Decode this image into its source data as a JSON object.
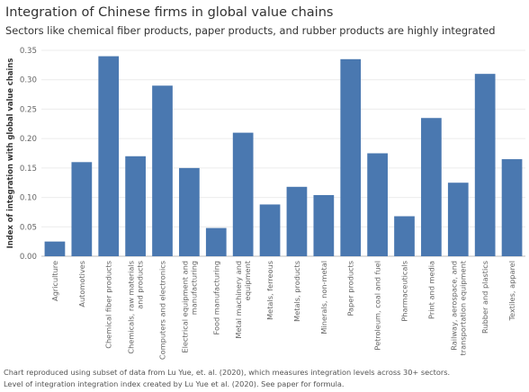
{
  "chart_data": {
    "type": "bar",
    "title": "Integration of Chinese firms in global value chains",
    "subtitle": "Sectors like chemical fiber products, paper products, and rubber products are highly integrated",
    "xlabel": "",
    "ylabel": "Index of integration with global value chains",
    "ylim": [
      0,
      0.35
    ],
    "y_ticks": [
      "0.00",
      "0.05",
      "0.10",
      "0.15",
      "0.20",
      "0.25",
      "0.30",
      "0.35"
    ],
    "grid": true,
    "bar_color": "#4a78b0",
    "categories": [
      [
        "Agriculture"
      ],
      [
        "Automotives"
      ],
      [
        "Chemical fiber products"
      ],
      [
        "Chemicals, raw materials",
        "and products"
      ],
      [
        "Computers and electronics"
      ],
      [
        "Electrical equipment and",
        "manufacturing"
      ],
      [
        "Food manufacturing"
      ],
      [
        "Metal machinery and",
        "equipment"
      ],
      [
        "Metals, ferreous"
      ],
      [
        "Metals, products"
      ],
      [
        "Minerals, non-metal"
      ],
      [
        "Paper products"
      ],
      [
        "Petroleum, coal and fuel"
      ],
      [
        "Pharmaceuticals"
      ],
      [
        "Print and media"
      ],
      [
        "Railway, aerospace, and",
        "transportation equipment"
      ],
      [
        "Rubber and plastics"
      ],
      [
        "Textiles, apparel"
      ]
    ],
    "values": [
      0.025,
      0.16,
      0.34,
      0.17,
      0.29,
      0.15,
      0.048,
      0.21,
      0.088,
      0.118,
      0.104,
      0.335,
      0.175,
      0.068,
      0.235,
      0.125,
      0.31,
      0.165
    ]
  },
  "footnotes": {
    "line1": "Chart reproduced using subset of data from Lu Yue, et. al. (2020), which measures integration levels across 30+ sectors.",
    "line2": "Level of integration integration index created by Lu Yue et al. (2020). See paper for formula."
  }
}
